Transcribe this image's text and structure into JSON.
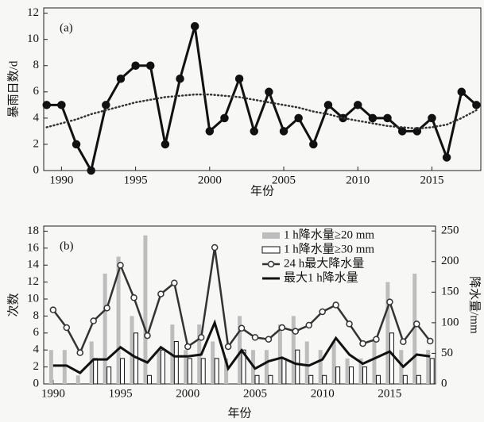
{
  "chart_data": [
    {
      "type": "line",
      "label": "(a)",
      "xlabel": "年份",
      "ylabel": "暴雨日数/d",
      "x": [
        1989,
        1990,
        1991,
        1992,
        1993,
        1994,
        1995,
        1996,
        1997,
        1998,
        1999,
        2000,
        2001,
        2002,
        2003,
        2004,
        2005,
        2006,
        2007,
        2008,
        2009,
        2010,
        2011,
        2012,
        2013,
        2014,
        2015,
        2016,
        2017,
        2018
      ],
      "xlim": [
        1988.8,
        2018.3
      ],
      "xticks": [
        1990,
        1995,
        2000,
        2005,
        2010,
        2015
      ],
      "ylim": [
        0,
        12.4
      ],
      "yticks": [
        0,
        2,
        4,
        6,
        8,
        10,
        12
      ],
      "series": [
        {
          "color": "#111111",
          "marker": "circle",
          "width": 3,
          "values": [
            5,
            5,
            2,
            0,
            5,
            7,
            8,
            8,
            2,
            7,
            11,
            3,
            4,
            7,
            3,
            6,
            3,
            4,
            2,
            5,
            4,
            5,
            4,
            4,
            3,
            3,
            4,
            1,
            6,
            5
          ]
        },
        {
          "color": "#333333",
          "dash": "dotted",
          "width": 2.5,
          "values": [
            3.3,
            3.6,
            3.9,
            4.3,
            4.6,
            4.9,
            5.2,
            5.4,
            5.6,
            5.7,
            5.8,
            5.8,
            5.7,
            5.6,
            5.4,
            5.2,
            5.0,
            4.8,
            4.5,
            4.3,
            4.0,
            3.8,
            3.6,
            3.4,
            3.3,
            3.2,
            3.3,
            3.5,
            4.0,
            4.6
          ]
        }
      ]
    },
    {
      "type": "combo",
      "label": "(b)",
      "xlabel": "年份",
      "ylabel": "次数",
      "y2label": "降水量/mm",
      "x": [
        1990,
        1991,
        1992,
        1993,
        1994,
        1995,
        1996,
        1997,
        1998,
        1999,
        2000,
        2001,
        2002,
        2003,
        2004,
        2005,
        2006,
        2007,
        2008,
        2009,
        2010,
        2011,
        2012,
        2013,
        2014,
        2015,
        2016,
        2017,
        2018
      ],
      "xlim": [
        1989.3,
        2018.4
      ],
      "xticks": [
        1990,
        1995,
        2000,
        2005,
        2010,
        2015
      ],
      "ylim": [
        0,
        18.6
      ],
      "yticks": [
        0,
        2,
        4,
        6,
        8,
        10,
        12,
        14,
        16,
        18
      ],
      "y2lim": [
        0,
        258
      ],
      "y2ticks": [
        0,
        50,
        100,
        150,
        200,
        250
      ],
      "legend": "upper right",
      "series": [
        {
          "name": "1 h降水量≥20 mm",
          "type": "bar",
          "color": "#bdbdbd",
          "values": [
            4,
            4,
            1,
            5,
            13,
            15,
            8,
            17.5,
            4,
            7,
            4,
            7,
            5,
            3,
            8,
            4,
            4,
            7,
            8,
            5,
            4,
            5,
            3,
            3,
            5,
            12,
            4,
            13,
            4
          ]
        },
        {
          "name": "1 h降水量≥30 mm",
          "type": "bar",
          "color": "#ffffff",
          "stroke": "#111111",
          "values": [
            0,
            0,
            0,
            3,
            2,
            3,
            6,
            1,
            4,
            5,
            3,
            3,
            3,
            0,
            4,
            1,
            1,
            3,
            4,
            1,
            1,
            2,
            2,
            2,
            1,
            6,
            1,
            1,
            3
          ]
        },
        {
          "name": "24 h最大降水量",
          "type": "line",
          "axis": "y2",
          "color": "#333333",
          "marker": "circle",
          "width": 2.5,
          "values": [
            121,
            92,
            51,
            103,
            124,
            194,
            141,
            79,
            147,
            165,
            61,
            76,
            223,
            61,
            91,
            76,
            73,
            92,
            86,
            96,
            118,
            129,
            98,
            66,
            73,
            134,
            69,
            98,
            70
          ]
        },
        {
          "name": "最大1 h降水量",
          "type": "line",
          "axis": "y2",
          "color": "#111111",
          "width": 3,
          "values": [
            30,
            30,
            18,
            40,
            40,
            60,
            45,
            35,
            60,
            45,
            45,
            48,
            100,
            25,
            55,
            25,
            37,
            43,
            33,
            30,
            40,
            75,
            48,
            33,
            43,
            53,
            28,
            48,
            45
          ]
        }
      ]
    }
  ]
}
